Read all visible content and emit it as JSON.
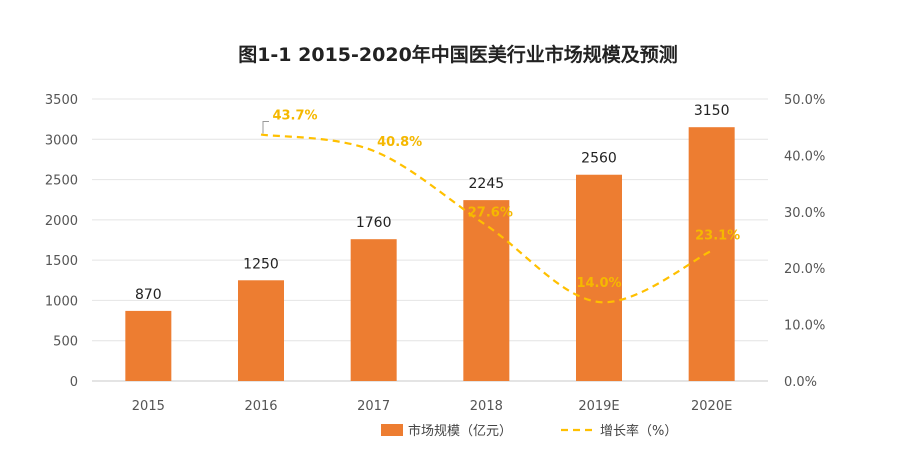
{
  "chart_data": {
    "type": "bar",
    "title": "图1-1 2015-2020年中国医美行业市场规模及预测",
    "categories": [
      "2015",
      "2016",
      "2017",
      "2018",
      "2019E",
      "2020E"
    ],
    "ylim": [
      0,
      3500
    ],
    "y_ticks": [
      "0",
      "500",
      "1000",
      "1500",
      "2000",
      "2500",
      "3000",
      "3500"
    ],
    "y2lim": [
      0,
      50
    ],
    "y2_ticks": [
      "0.0%",
      "10.0%",
      "20.0%",
      "30.0%",
      "40.0%",
      "50.0%"
    ],
    "grid": true,
    "legend_position": "bottom",
    "series": [
      {
        "name": "市场规模（亿元）",
        "kind": "bar",
        "axis": "left",
        "color": "#ed7d31",
        "values": [
          870,
          1250,
          1760,
          2245,
          2560,
          3150
        ],
        "labels": [
          "870",
          "1250",
          "1760",
          "2245",
          "2560",
          "3150"
        ]
      },
      {
        "name": "增长率（%）",
        "kind": "line",
        "axis": "right",
        "style": "dashed-smooth",
        "color": "#ffc000",
        "values": [
          null,
          43.7,
          40.8,
          27.6,
          14.0,
          23.1
        ],
        "labels": [
          null,
          "43.7%",
          "40.8%",
          "27.6%",
          "14.0%",
          "23.1%"
        ]
      }
    ]
  }
}
